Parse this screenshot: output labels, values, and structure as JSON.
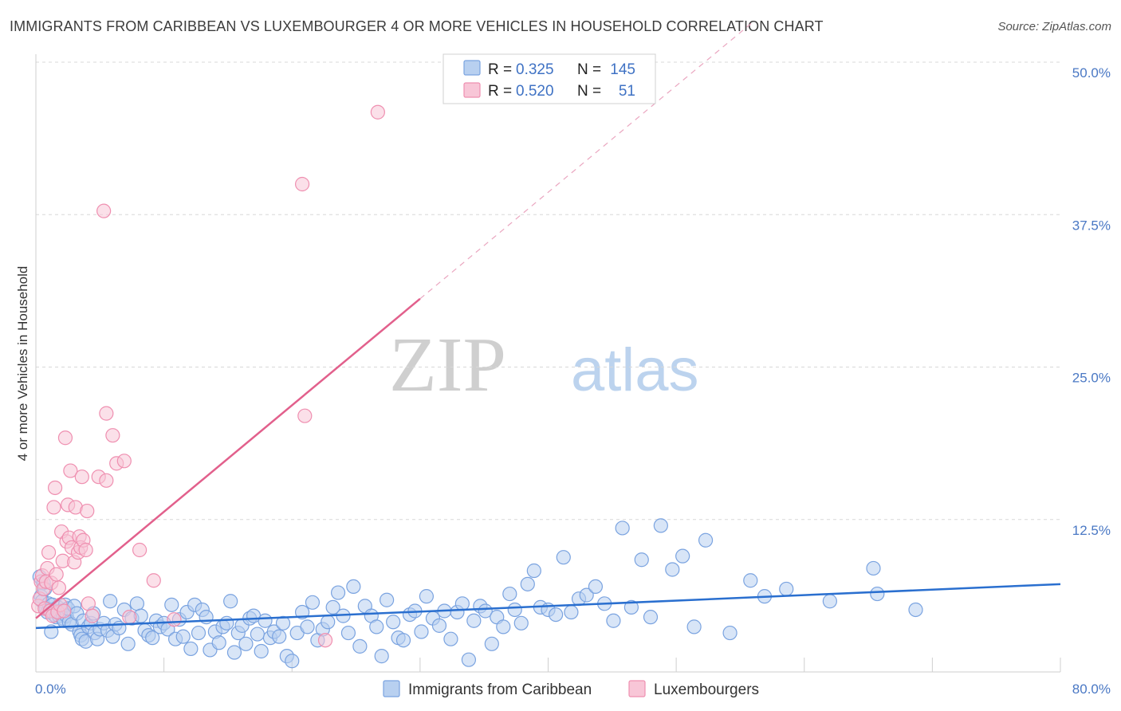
{
  "header": {
    "title": "IMMIGRANTS FROM CARIBBEAN VS LUXEMBOURGER 4 OR MORE VEHICLES IN HOUSEHOLD CORRELATION CHART",
    "source": "Source: ZipAtlas.com"
  },
  "watermark": {
    "zip": "ZIP",
    "atlas": "atlas"
  },
  "colors": {
    "blue": "#7aa3e0",
    "blue_fill": "#b8d0f0",
    "blue_line": "#2a6fcf",
    "pink": "#ef8fb0",
    "pink_fill": "#f8c6d7",
    "pink_line": "#e2608c",
    "tick_label": "#4a78c4",
    "grid": "#d8d8d8"
  },
  "legend": {
    "rows": [
      {
        "r_label": "R =",
        "r_value": "0.325",
        "n_label": "N =",
        "n_value": "145"
      },
      {
        "r_label": "R =",
        "r_value": "0.520",
        "n_label": "N =",
        "n_value": "51"
      }
    ]
  },
  "bottom_legend": {
    "items": [
      {
        "label": "Immigrants from Caribbean"
      },
      {
        "label": "Luxembourgers"
      }
    ]
  },
  "chart_data": {
    "type": "scatter",
    "title": "IMMIGRANTS FROM CARIBBEAN VS LUXEMBOURGER 4 OR MORE VEHICLES IN HOUSEHOLD CORRELATION CHART",
    "xlabel": "",
    "ylabel": "4 or more Vehicles in Household",
    "xlim": [
      0,
      80
    ],
    "ylim": [
      0,
      50
    ],
    "x_ticks": [
      0,
      80
    ],
    "x_tick_labels": [
      "0.0%",
      "80.0%"
    ],
    "y_ticks": [
      12.5,
      25,
      37.5,
      50
    ],
    "y_tick_labels": [
      "12.5%",
      "25.0%",
      "37.5%",
      "50.0%"
    ],
    "grid": true,
    "legend_position": "top-center",
    "series": [
      {
        "name": "Immigrants from Caribbean",
        "R": 0.325,
        "N": 145,
        "trend": {
          "x": [
            0,
            80
          ],
          "y": [
            3.6,
            7.2
          ]
        },
        "points": [
          [
            0.3,
            7.8
          ],
          [
            0.4,
            6.2
          ],
          [
            0.5,
            5.8
          ],
          [
            0.6,
            7.3
          ],
          [
            0.7,
            6.8
          ],
          [
            0.8,
            5.2
          ],
          [
            0.9,
            4.9
          ],
          [
            1.0,
            5.6
          ],
          [
            1.1,
            5.1
          ],
          [
            1.2,
            3.3
          ],
          [
            1.3,
            5.5
          ],
          [
            1.4,
            4.7
          ],
          [
            1.5,
            5.0
          ],
          [
            1.6,
            4.5
          ],
          [
            1.7,
            5.3
          ],
          [
            1.8,
            4.6
          ],
          [
            1.9,
            4.8
          ],
          [
            2.0,
            5.0
          ],
          [
            2.1,
            4.4
          ],
          [
            2.2,
            4.2
          ],
          [
            2.3,
            5.5
          ],
          [
            2.4,
            4.6
          ],
          [
            2.5,
            5.2
          ],
          [
            2.6,
            4.1
          ],
          [
            2.8,
            3.9
          ],
          [
            3.0,
            5.4
          ],
          [
            3.2,
            4.8
          ],
          [
            3.4,
            3.3
          ],
          [
            3.5,
            3.0
          ],
          [
            3.6,
            2.7
          ],
          [
            3.7,
            4.2
          ],
          [
            3.9,
            2.5
          ],
          [
            4.1,
            3.7
          ],
          [
            4.3,
            4.0
          ],
          [
            4.5,
            4.8
          ],
          [
            4.6,
            3.2
          ],
          [
            4.8,
            2.7
          ],
          [
            5.0,
            3.5
          ],
          [
            5.3,
            4.0
          ],
          [
            5.6,
            3.4
          ],
          [
            5.8,
            5.8
          ],
          [
            6.0,
            2.9
          ],
          [
            6.2,
            3.9
          ],
          [
            6.5,
            3.6
          ],
          [
            6.9,
            5.1
          ],
          [
            7.2,
            2.3
          ],
          [
            7.5,
            4.4
          ],
          [
            7.9,
            5.6
          ],
          [
            8.2,
            4.6
          ],
          [
            8.5,
            3.4
          ],
          [
            8.8,
            3.0
          ],
          [
            9.1,
            2.8
          ],
          [
            9.4,
            4.2
          ],
          [
            9.7,
            3.7
          ],
          [
            10.0,
            4.0
          ],
          [
            10.3,
            3.5
          ],
          [
            10.6,
            5.5
          ],
          [
            10.9,
            2.7
          ],
          [
            11.2,
            4.3
          ],
          [
            11.5,
            2.9
          ],
          [
            11.8,
            4.9
          ],
          [
            12.1,
            1.9
          ],
          [
            12.4,
            5.5
          ],
          [
            12.7,
            3.2
          ],
          [
            13.0,
            5.1
          ],
          [
            13.3,
            4.5
          ],
          [
            13.6,
            1.8
          ],
          [
            14.0,
            3.3
          ],
          [
            14.3,
            2.4
          ],
          [
            14.6,
            3.7
          ],
          [
            14.9,
            4.0
          ],
          [
            15.2,
            5.8
          ],
          [
            15.5,
            1.6
          ],
          [
            15.8,
            3.2
          ],
          [
            16.1,
            3.8
          ],
          [
            16.4,
            2.3
          ],
          [
            16.7,
            4.4
          ],
          [
            17.0,
            4.6
          ],
          [
            17.3,
            3.1
          ],
          [
            17.6,
            1.7
          ],
          [
            17.9,
            4.2
          ],
          [
            18.3,
            2.8
          ],
          [
            18.6,
            3.3
          ],
          [
            19.0,
            2.9
          ],
          [
            19.3,
            4.0
          ],
          [
            19.6,
            1.3
          ],
          [
            20.0,
            0.9
          ],
          [
            20.4,
            3.2
          ],
          [
            20.8,
            4.9
          ],
          [
            21.2,
            3.7
          ],
          [
            21.6,
            5.7
          ],
          [
            22.0,
            2.6
          ],
          [
            22.4,
            3.5
          ],
          [
            22.8,
            4.1
          ],
          [
            23.2,
            5.3
          ],
          [
            23.6,
            6.5
          ],
          [
            24.0,
            4.6
          ],
          [
            24.4,
            3.2
          ],
          [
            24.8,
            7.0
          ],
          [
            25.3,
            2.1
          ],
          [
            25.7,
            5.4
          ],
          [
            26.2,
            4.6
          ],
          [
            26.6,
            3.7
          ],
          [
            27.0,
            1.3
          ],
          [
            27.4,
            5.9
          ],
          [
            27.9,
            4.1
          ],
          [
            28.3,
            2.8
          ],
          [
            28.7,
            2.6
          ],
          [
            29.2,
            4.7
          ],
          [
            29.6,
            5.0
          ],
          [
            30.1,
            3.3
          ],
          [
            30.5,
            6.2
          ],
          [
            31.0,
            4.4
          ],
          [
            31.5,
            3.8
          ],
          [
            31.9,
            5.0
          ],
          [
            32.4,
            2.7
          ],
          [
            32.9,
            4.9
          ],
          [
            33.3,
            5.6
          ],
          [
            33.8,
            1.0
          ],
          [
            34.2,
            4.2
          ],
          [
            34.7,
            5.4
          ],
          [
            35.1,
            5.0
          ],
          [
            35.6,
            2.3
          ],
          [
            36.0,
            4.5
          ],
          [
            36.5,
            3.7
          ],
          [
            37.0,
            6.4
          ],
          [
            37.4,
            5.1
          ],
          [
            37.9,
            4.0
          ],
          [
            38.4,
            7.2
          ],
          [
            38.9,
            8.3
          ],
          [
            39.4,
            5.3
          ],
          [
            40.0,
            5.1
          ],
          [
            40.6,
            4.7
          ],
          [
            41.2,
            9.4
          ],
          [
            41.8,
            4.9
          ],
          [
            42.4,
            6.0
          ],
          [
            43.0,
            6.3
          ],
          [
            43.7,
            7.0
          ],
          [
            44.4,
            5.6
          ],
          [
            45.1,
            4.2
          ],
          [
            45.8,
            11.8
          ],
          [
            46.5,
            5.3
          ],
          [
            47.3,
            9.2
          ],
          [
            48.0,
            4.5
          ],
          [
            48.8,
            12.0
          ],
          [
            49.7,
            8.4
          ],
          [
            50.5,
            9.5
          ],
          [
            51.4,
            3.7
          ],
          [
            52.3,
            10.8
          ],
          [
            54.2,
            3.2
          ],
          [
            55.8,
            7.5
          ],
          [
            56.9,
            6.2
          ],
          [
            58.6,
            6.8
          ],
          [
            62.0,
            5.8
          ],
          [
            65.4,
            8.5
          ],
          [
            65.7,
            6.4
          ],
          [
            68.7,
            5.1
          ]
        ]
      },
      {
        "name": "Luxembourgers",
        "R": 0.52,
        "N": 51,
        "trend": {
          "x": [
            0,
            30
          ],
          "y": [
            4.4,
            30.6
          ]
        },
        "trend_dashed": {
          "x": [
            30,
            56
          ],
          "y": [
            30.6,
            53.3
          ]
        },
        "points": [
          [
            0.2,
            5.4
          ],
          [
            0.3,
            6.0
          ],
          [
            0.4,
            7.4
          ],
          [
            0.5,
            7.9
          ],
          [
            0.6,
            6.8
          ],
          [
            0.7,
            5.2
          ],
          [
            0.8,
            7.4
          ],
          [
            0.9,
            8.5
          ],
          [
            1.0,
            9.8
          ],
          [
            1.1,
            5.0
          ],
          [
            1.2,
            7.3
          ],
          [
            1.3,
            4.6
          ],
          [
            1.4,
            13.5
          ],
          [
            1.5,
            15.1
          ],
          [
            1.6,
            8.0
          ],
          [
            1.7,
            4.9
          ],
          [
            1.8,
            6.9
          ],
          [
            1.9,
            5.5
          ],
          [
            2.0,
            11.5
          ],
          [
            2.1,
            9.1
          ],
          [
            2.2,
            5.0
          ],
          [
            2.3,
            19.2
          ],
          [
            2.4,
            10.7
          ],
          [
            2.5,
            13.7
          ],
          [
            2.6,
            11.0
          ],
          [
            2.7,
            16.5
          ],
          [
            2.8,
            10.2
          ],
          [
            3.0,
            9.0
          ],
          [
            3.1,
            13.5
          ],
          [
            3.3,
            9.8
          ],
          [
            3.4,
            11.1
          ],
          [
            3.5,
            10.2
          ],
          [
            3.6,
            16.0
          ],
          [
            3.7,
            10.8
          ],
          [
            3.9,
            10.0
          ],
          [
            4.0,
            13.2
          ],
          [
            4.1,
            5.6
          ],
          [
            4.4,
            4.6
          ],
          [
            4.9,
            16.0
          ],
          [
            5.3,
            37.8
          ],
          [
            5.5,
            21.2
          ],
          [
            5.5,
            15.7
          ],
          [
            6.0,
            19.4
          ],
          [
            6.3,
            17.1
          ],
          [
            6.9,
            17.3
          ],
          [
            7.3,
            4.5
          ],
          [
            8.1,
            10.0
          ],
          [
            9.2,
            7.5
          ],
          [
            10.8,
            4.3
          ],
          [
            21.0,
            21.0
          ],
          [
            22.6,
            2.6
          ],
          [
            20.8,
            40.0
          ],
          [
            26.7,
            45.9
          ]
        ]
      }
    ]
  }
}
